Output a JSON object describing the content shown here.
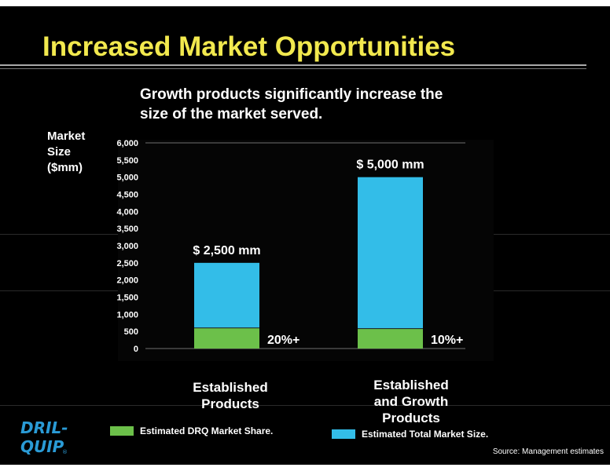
{
  "slide": {
    "title": "Increased Market Opportunities",
    "subtitle": "Growth products significantly increase the size of the market served.",
    "source": "Source: Management estimates",
    "logo": {
      "line1": "DRIL-",
      "line2": "QUIP",
      "mark": "®",
      "color": "#2a9bd6"
    }
  },
  "chart_data": {
    "type": "bar",
    "stacked": true,
    "ylabel": "Market\nSize\n($mm)",
    "ylim": [
      0,
      6000
    ],
    "ytick_step": 500,
    "yticks": [
      "0",
      "500",
      "1,000",
      "1,500",
      "2,000",
      "2,500",
      "3,000",
      "3,500",
      "4,000",
      "4,500",
      "5,000",
      "5,500",
      "6,000"
    ],
    "categories": [
      "Established\nProducts",
      "Established\nand Growth\nProducts"
    ],
    "totals": [
      2500,
      5000
    ],
    "total_labels": [
      "$ 2,500 mm",
      "$ 5,000 mm"
    ],
    "share_labels": [
      "20%+",
      "10%+"
    ],
    "series": [
      {
        "name": "Estimated DRQ Market Share.",
        "values": [
          600,
          580
        ],
        "color": "#6cc04a"
      },
      {
        "name": "Estimated Total Market Size.",
        "values": [
          1900,
          4420
        ],
        "color": "#33bde8"
      }
    ],
    "legend_position": "bottom"
  }
}
